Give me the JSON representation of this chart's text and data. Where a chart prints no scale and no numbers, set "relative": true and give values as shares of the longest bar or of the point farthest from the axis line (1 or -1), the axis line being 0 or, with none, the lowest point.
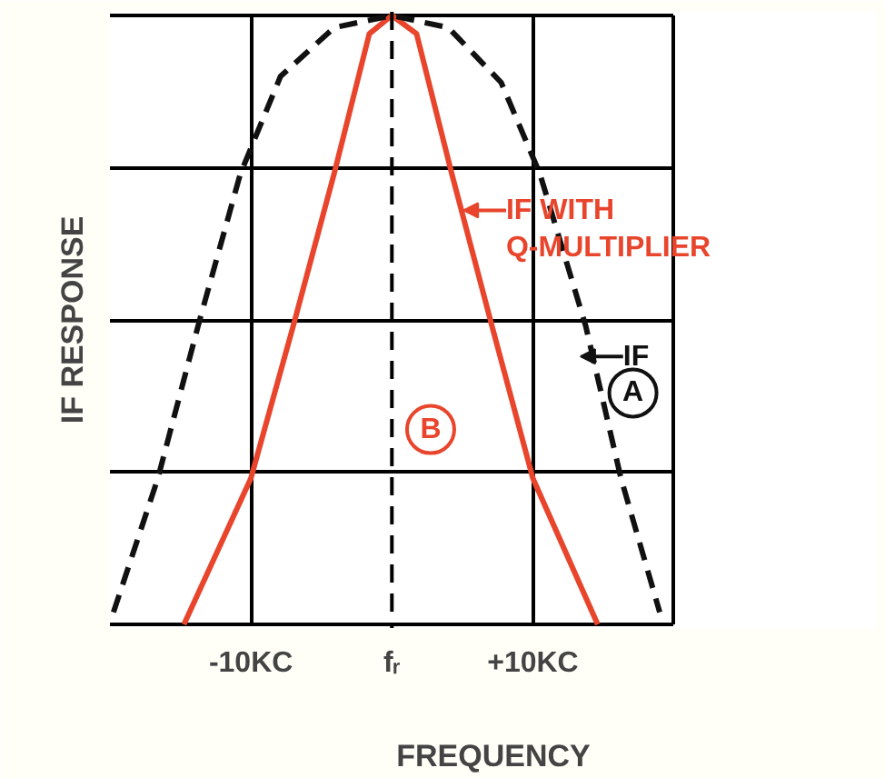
{
  "chart_data": {
    "type": "line",
    "relative": true,
    "xlabel": "FREQUENCY",
    "ylabel": "IF RESPONSE",
    "xlim": [
      -20,
      20
    ],
    "xticks": [
      {
        "value": -10,
        "label": "-10KC"
      },
      {
        "value": 0,
        "label": "fᵣ"
      },
      {
        "value": 10,
        "label": "+10KC"
      }
    ],
    "grid": true,
    "ref_lines": [
      {
        "axis": "x",
        "value": 0,
        "line_style": "dashed",
        "color": "#000000"
      }
    ],
    "series": [
      {
        "color": "#e8452c",
        "line_style": "solid",
        "x": [
          -14.75,
          -10,
          -7,
          -4.1,
          -1.6,
          0,
          1.75,
          4.25,
          7.1,
          10,
          14.6
        ],
        "values": [
          0,
          0.24,
          0.49,
          0.74,
          0.97,
          1,
          0.97,
          0.74,
          0.49,
          0.24,
          0
        ]
      },
      {
        "color": "#111111",
        "line_style": "dashed",
        "x": [
          -19.75,
          -16.6,
          -13.75,
          -10.75,
          -7.9,
          -4.1,
          0,
          4,
          7.75,
          10.5,
          13.75,
          16.25,
          19
        ],
        "values": [
          0.02,
          0.24,
          0.49,
          0.74,
          0.9,
          0.98,
          1,
          0.98,
          0.89,
          0.74,
          0.49,
          0.24,
          0.02
        ]
      }
    ],
    "annotations": [
      {
        "text": "IF WITH\nQ-MULTIPLIER",
        "x": 5.6,
        "y": 0.68
      },
      {
        "text": "IF",
        "x": 13.9,
        "y": 0.44
      },
      {
        "text": "B",
        "x": 2.75,
        "y": 0.32
      },
      {
        "text": "A",
        "x": 17.1,
        "y": 0.38
      }
    ]
  }
}
